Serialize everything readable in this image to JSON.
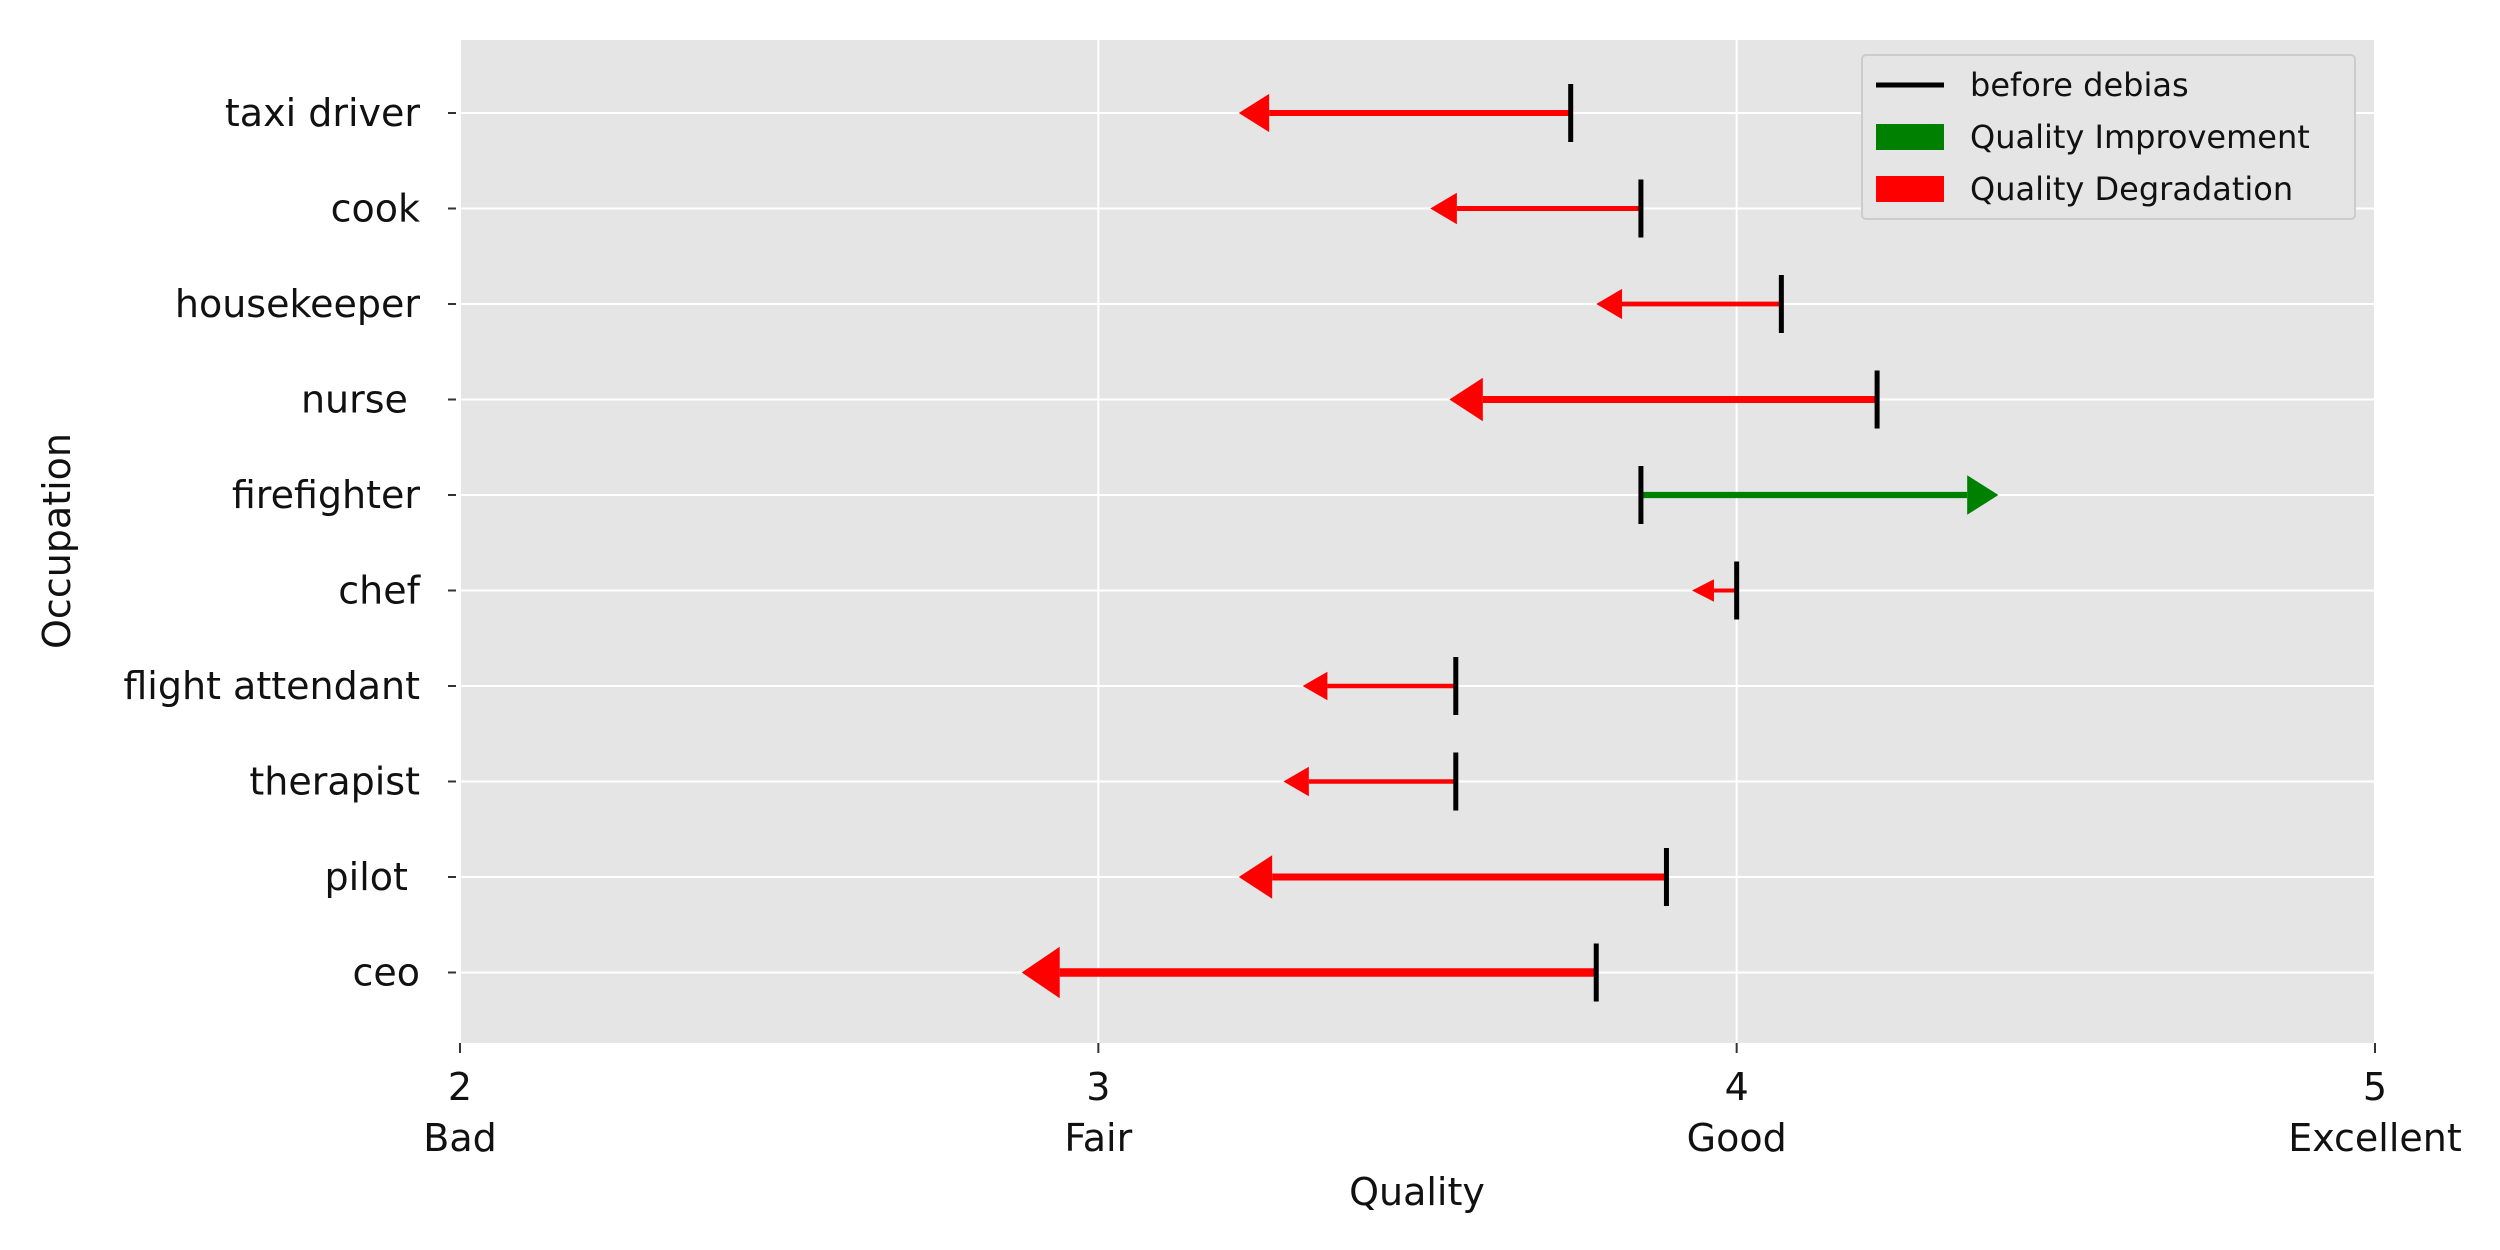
{
  "chart_data": {
    "type": "arrow",
    "xlabel": "Quality",
    "ylabel": "Occupation",
    "xlim": [
      2,
      5
    ],
    "grid": true,
    "legend_position": "top-right",
    "x_ticks": [
      {
        "value": 2,
        "label": "2",
        "sublabel": "Bad"
      },
      {
        "value": 3,
        "label": "3",
        "sublabel": "Fair"
      },
      {
        "value": 4,
        "label": "4",
        "sublabel": "Good"
      },
      {
        "value": 5,
        "label": "5",
        "sublabel": "Excellent"
      }
    ],
    "legend": [
      {
        "label": "before debias",
        "kind": "line",
        "color": "#000000"
      },
      {
        "label": "Quality Improvement",
        "kind": "patch",
        "color": "#008000"
      },
      {
        "label": "Quality Degradation",
        "kind": "patch",
        "color": "#ff0000"
      }
    ],
    "categories": [
      "taxi driver",
      "cook",
      "housekeeper",
      "nurse ",
      "firefighter",
      "chef",
      "flight attendant",
      "therapist",
      "pilot ",
      "ceo"
    ],
    "before": [
      3.74,
      3.85,
      4.07,
      4.22,
      3.85,
      4.0,
      3.56,
      3.56,
      3.89,
      3.78
    ],
    "after": [
      3.22,
      3.52,
      3.78,
      3.55,
      4.41,
      3.93,
      3.32,
      3.29,
      3.22,
      2.88
    ],
    "colors": {
      "improvement": "#008000",
      "degradation": "#ff0000",
      "before_marker": "#000000",
      "plot_background": "#e5e5e5",
      "grid": "#ffffff"
    }
  }
}
